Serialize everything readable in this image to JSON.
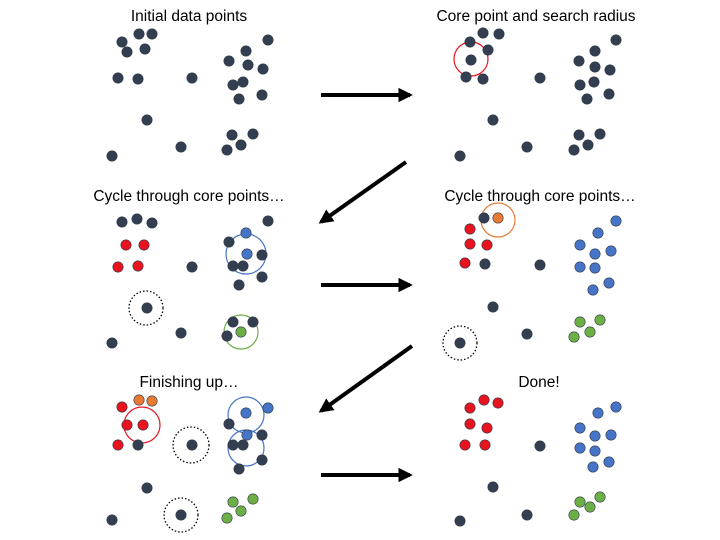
{
  "colors": {
    "unassigned": "#333f50",
    "cluster_red": "#e8131e",
    "cluster_orange": "#e97a33",
    "cluster_blue": "#4674c6",
    "cluster_green": "#6daf47",
    "arrow": "#000000",
    "noise_ring": "#000000"
  },
  "panels": [
    {
      "id": "initial",
      "title": "Initial data points"
    },
    {
      "id": "core-point",
      "title": "Core point and search radius"
    },
    {
      "id": "cycle-1",
      "title": "Cycle through core points…"
    },
    {
      "id": "cycle-2",
      "title": "Cycle through core points…"
    },
    {
      "id": "finishing",
      "title": "Finishing up…"
    },
    {
      "id": "done",
      "title": "Done!"
    }
  ]
}
